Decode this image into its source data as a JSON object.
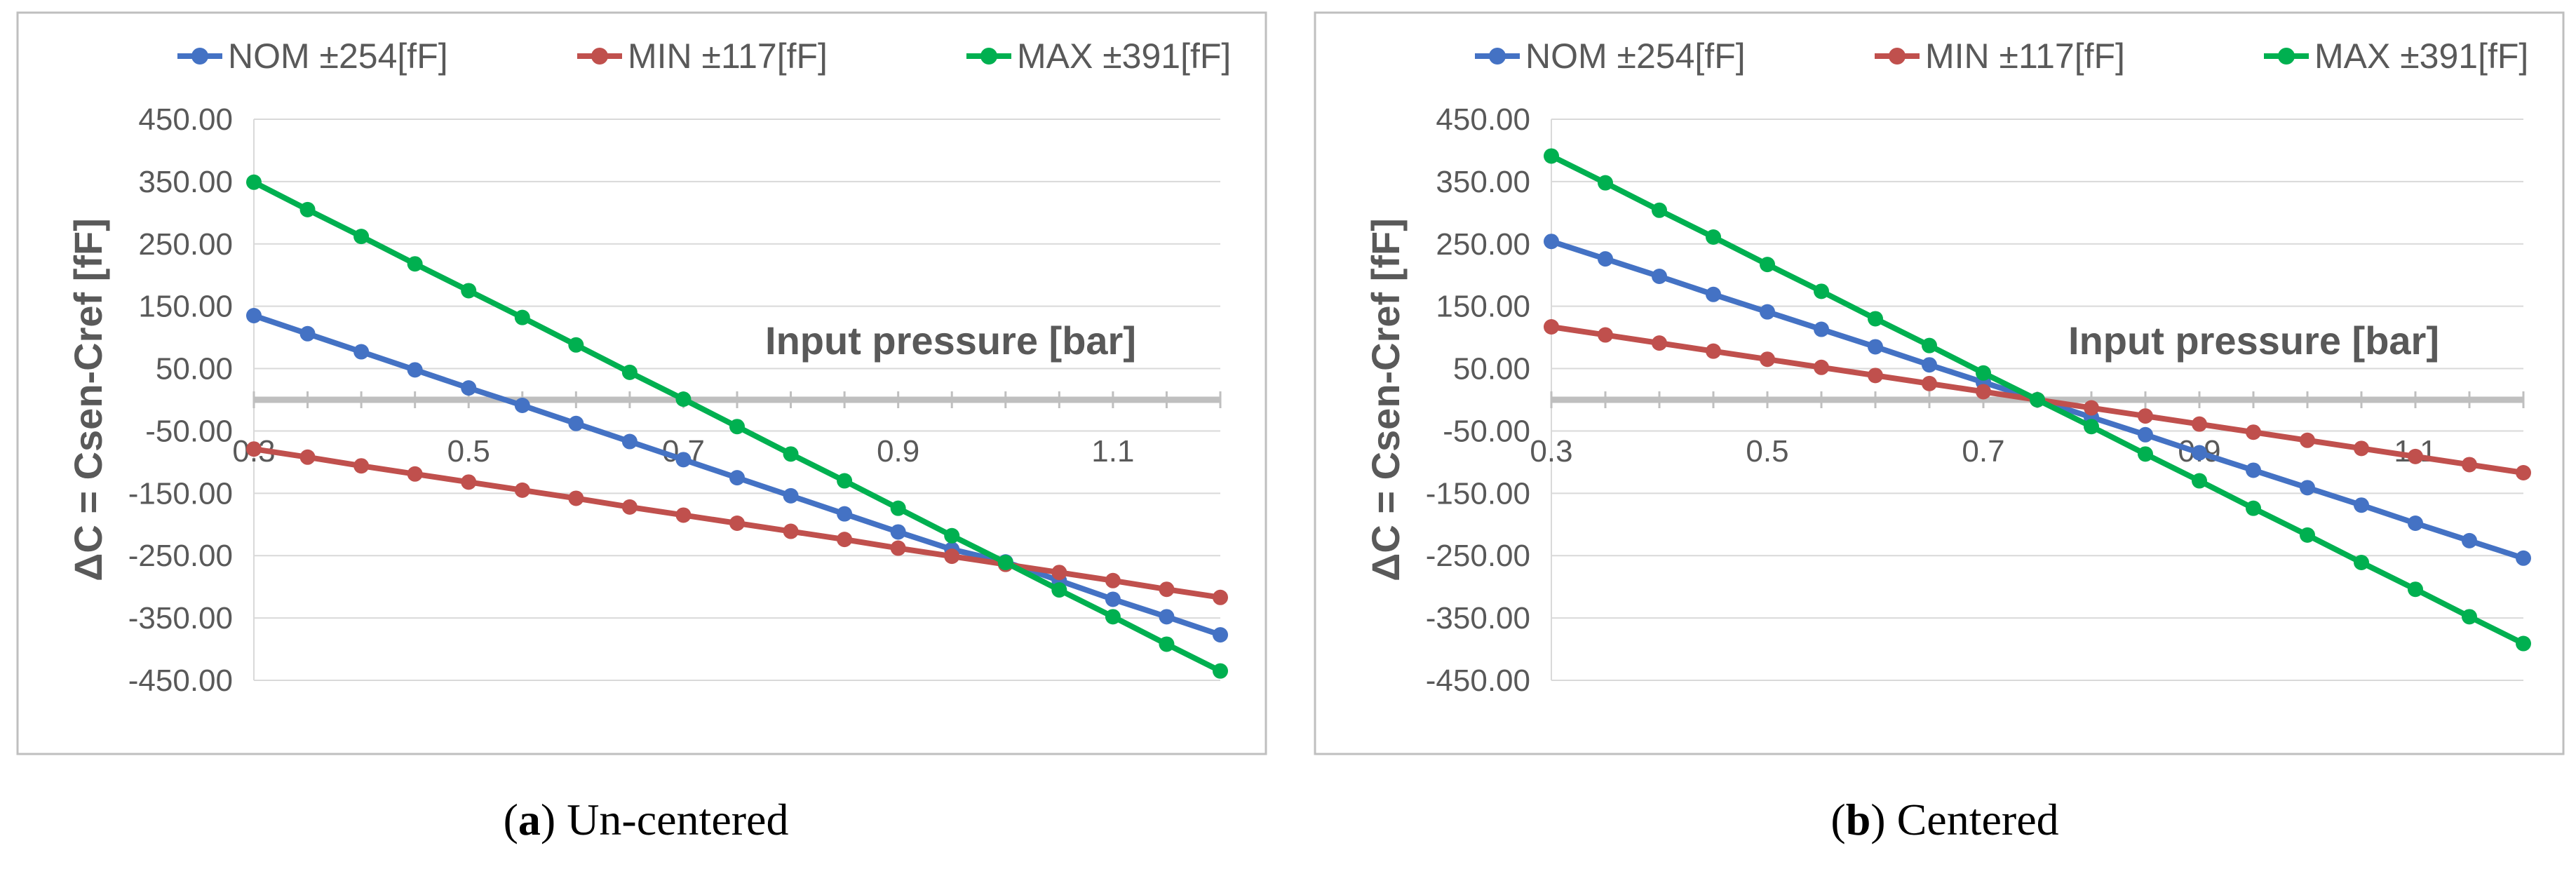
{
  "colors": {
    "nom": "#4472c4",
    "min": "#c0504d",
    "max": "#00b050",
    "grid": "#d9d9d9",
    "axis": "#bfbfbf",
    "frame": "#bfbfbf"
  },
  "chart_data": [
    {
      "type": "line",
      "caption_letter": "a",
      "caption_text": "Un-centered",
      "xlabel": "Input pressure [bar]",
      "ylabel": "ΔC = Csen-Cref [fF]",
      "xlim": [
        0.3,
        1.2
      ],
      "ylim": [
        -450,
        450
      ],
      "x_ticks": [
        "0.3",
        "0.5",
        "0.7",
        "0.9",
        "1.1"
      ],
      "y_ticks": [
        "450.00",
        "350.00",
        "250.00",
        "150.00",
        "50.00",
        "-50.00",
        "-150.00",
        "-250.00",
        "-350.00",
        "-450.00"
      ],
      "legend": [
        "NOM ±254[fF]",
        "MIN ±117[fF]",
        "MAX ±391[fF]"
      ],
      "x": [
        0.3,
        0.35,
        0.4,
        0.45,
        0.5,
        0.55,
        0.6,
        0.65,
        0.7,
        0.75,
        0.8,
        0.85,
        0.9,
        0.95,
        1.0,
        1.05,
        1.1,
        1.15,
        1.2
      ],
      "series": [
        {
          "name": "NOM ±254[fF]",
          "key": "nom",
          "values": [
            135,
            106,
            77,
            48,
            19,
            -9,
            -38,
            -67,
            -96,
            -125,
            -154,
            -183,
            -212,
            -240,
            -260,
            -290,
            -320,
            -348,
            -377
          ]
        },
        {
          "name": "MIN ±117[fF]",
          "key": "min",
          "values": [
            -79,
            -92,
            -106,
            -119,
            -132,
            -145,
            -158,
            -172,
            -185,
            -198,
            -211,
            -224,
            -238,
            -251,
            -264,
            -277,
            -290,
            -304,
            -317
          ]
        },
        {
          "name": "MAX ±391[fF]",
          "key": "max",
          "values": [
            349,
            305,
            262,
            218,
            175,
            132,
            88,
            44,
            1,
            -43,
            -87,
            -130,
            -174,
            -218,
            -261,
            -305,
            -348,
            -392,
            -435
          ]
        }
      ]
    },
    {
      "type": "line",
      "caption_letter": "b",
      "caption_text": "Centered",
      "xlabel": "Input pressure [bar]",
      "ylabel": "ΔC = Csen-Cref [fF]",
      "xlim": [
        0.3,
        1.2
      ],
      "ylim": [
        -450,
        450
      ],
      "x_ticks": [
        "0.3",
        "0.5",
        "0.7",
        "0.9",
        "1.1"
      ],
      "y_ticks": [
        "450.00",
        "350.00",
        "250.00",
        "150.00",
        "50.00",
        "-50.00",
        "-150.00",
        "-250.00",
        "-350.00",
        "-450.00"
      ],
      "legend": [
        "NOM ±254[fF]",
        "MIN ±117[fF]",
        "MAX ±391[fF]"
      ],
      "x": [
        0.3,
        0.35,
        0.4,
        0.45,
        0.5,
        0.55,
        0.6,
        0.65,
        0.7,
        0.75,
        0.8,
        0.85,
        0.9,
        0.95,
        1.0,
        1.05,
        1.1,
        1.15,
        1.2
      ],
      "series": [
        {
          "name": "NOM ±254[fF]",
          "key": "nom",
          "values": [
            254,
            226,
            198,
            169,
            141,
            113,
            85,
            56,
            28,
            0,
            -28,
            -56,
            -85,
            -113,
            -141,
            -169,
            -198,
            -226,
            -254
          ]
        },
        {
          "name": "MIN ±117[fF]",
          "key": "min",
          "values": [
            117,
            104,
            91,
            78,
            65,
            52,
            39,
            26,
            13,
            0,
            -13,
            -26,
            -39,
            -52,
            -65,
            -78,
            -91,
            -104,
            -117
          ]
        },
        {
          "name": "MAX ±391[fF]",
          "key": "max",
          "values": [
            391,
            348,
            304,
            261,
            217,
            174,
            130,
            87,
            43,
            0,
            -43,
            -87,
            -130,
            -174,
            -217,
            -261,
            -304,
            -348,
            -391
          ]
        }
      ]
    }
  ]
}
